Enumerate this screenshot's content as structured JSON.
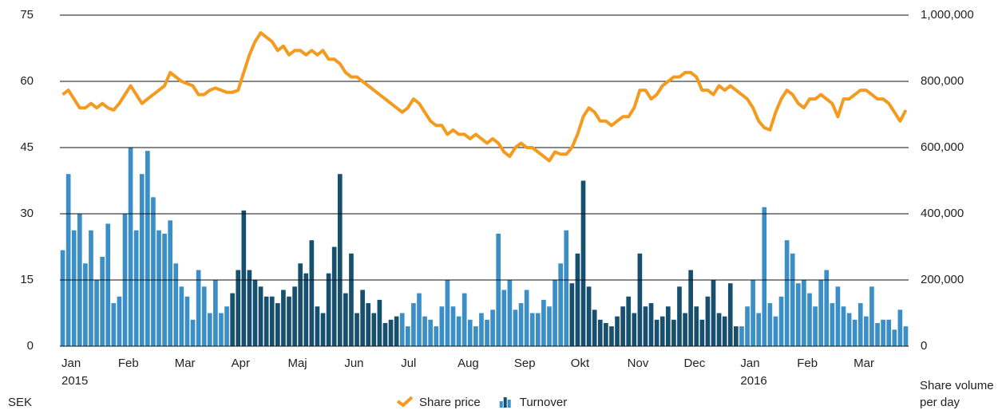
{
  "chart_data": {
    "type": "combo",
    "x": [
      0.05,
      0.15,
      0.25,
      0.35,
      0.45,
      0.55,
      0.65,
      0.75,
      0.85,
      0.95,
      1.05,
      1.15,
      1.25,
      1.35,
      1.45,
      1.55,
      1.65,
      1.75,
      1.85,
      1.95,
      2.05,
      2.15,
      2.25,
      2.35,
      2.45,
      2.55,
      2.65,
      2.75,
      2.85,
      2.95,
      3.05,
      3.15,
      3.25,
      3.35,
      3.45,
      3.55,
      3.65,
      3.75,
      3.85,
      3.95,
      4.05,
      4.15,
      4.25,
      4.35,
      4.45,
      4.55,
      4.65,
      4.75,
      4.85,
      4.95,
      5.05,
      5.15,
      5.25,
      5.35,
      5.45,
      5.55,
      5.65,
      5.75,
      5.85,
      5.95,
      6.05,
      6.15,
      6.25,
      6.35,
      6.45,
      6.55,
      6.65,
      6.75,
      6.85,
      6.95,
      7.05,
      7.15,
      7.25,
      7.35,
      7.45,
      7.55,
      7.65,
      7.75,
      7.85,
      7.95,
      8.05,
      8.15,
      8.25,
      8.35,
      8.45,
      8.55,
      8.65,
      8.75,
      8.85,
      8.95,
      9.05,
      9.15,
      9.25,
      9.35,
      9.45,
      9.55,
      9.65,
      9.75,
      9.85,
      9.95,
      10.05,
      10.15,
      10.25,
      10.35,
      10.45,
      10.55,
      10.65,
      10.75,
      10.85,
      10.95,
      11.05,
      11.15,
      11.25,
      11.35,
      11.45,
      11.55,
      11.65,
      11.75,
      11.85,
      11.95,
      12.05,
      12.15,
      12.25,
      12.35,
      12.45,
      12.55,
      12.65,
      12.75,
      12.85,
      12.95,
      13.05,
      13.15,
      13.25,
      13.35,
      13.45,
      13.55,
      13.65,
      13.75,
      13.85,
      13.95,
      14.05,
      14.15,
      14.25,
      14.35,
      14.45,
      14.55,
      14.65,
      14.75,
      14.85,
      14.95
    ],
    "xlim": [
      0,
      15
    ],
    "xticks": [
      {
        "value": 0,
        "label": "Jan"
      },
      {
        "value": 1,
        "label": "Feb"
      },
      {
        "value": 2,
        "label": "Mar"
      },
      {
        "value": 3,
        "label": "Apr"
      },
      {
        "value": 4,
        "label": "Maj"
      },
      {
        "value": 5,
        "label": "Jun"
      },
      {
        "value": 6,
        "label": "Jul"
      },
      {
        "value": 7,
        "label": "Aug"
      },
      {
        "value": 8,
        "label": "Sep"
      },
      {
        "value": 9,
        "label": "Okt"
      },
      {
        "value": 10,
        "label": "Nov"
      },
      {
        "value": 11,
        "label": "Dec"
      },
      {
        "value": 12,
        "label": "Jan"
      },
      {
        "value": 13,
        "label": "Feb"
      },
      {
        "value": 14,
        "label": "Mar"
      }
    ],
    "year_labels": [
      {
        "value": 0,
        "label": "2015"
      },
      {
        "value": 12,
        "label": "2016"
      }
    ],
    "ylim": [
      0,
      75
    ],
    "yticks": [
      0,
      15,
      30,
      45,
      60,
      75
    ],
    "y2lim": [
      0,
      1000000
    ],
    "y2ticks": [
      0,
      {
        "value": 200000,
        "label": "200,000"
      },
      {
        "value": 400000,
        "label": "400,000"
      },
      {
        "value": 600000,
        "label": "600,000"
      },
      {
        "value": 800000,
        "label": "800,000"
      },
      {
        "value": 1000000,
        "label": "1,000,000"
      }
    ],
    "y_label": "SEK",
    "y2_label_lines": [
      "Share volume",
      "per day"
    ],
    "grid": true,
    "series": [
      {
        "name": "Share price",
        "type": "line",
        "color": "#f39a1f",
        "values": [
          57,
          58,
          56,
          54,
          54,
          55,
          54,
          55,
          54,
          53.5,
          55,
          57,
          59,
          57,
          55,
          56,
          57,
          58,
          59,
          62,
          61,
          60,
          59.5,
          59,
          57,
          57,
          58,
          58.5,
          58,
          57.5,
          57.5,
          58,
          62,
          66,
          69,
          71,
          70,
          69,
          67,
          68,
          66,
          67,
          67,
          66,
          67,
          66,
          67,
          65,
          65,
          64,
          62,
          61,
          61,
          60,
          59,
          58,
          57,
          56,
          55,
          54,
          53,
          54,
          56,
          55,
          53,
          51,
          50,
          50,
          48,
          49,
          48,
          48,
          47,
          48,
          47,
          46,
          47,
          46,
          44,
          43,
          45,
          46,
          45,
          45,
          44,
          43,
          42,
          44,
          43.5,
          43.5,
          45,
          48,
          52,
          54,
          53,
          51,
          51,
          50,
          51,
          52,
          52,
          54,
          58,
          58,
          56,
          57,
          59,
          60,
          61,
          61,
          62,
          62,
          61,
          58,
          58,
          57,
          59,
          58,
          59,
          58,
          57,
          56,
          54,
          51,
          49.5,
          49,
          53,
          56,
          58,
          57,
          55,
          54,
          56,
          56,
          57,
          56,
          55,
          52,
          56,
          56,
          57,
          58,
          58,
          57,
          56,
          56,
          55,
          53,
          51,
          53.5
        ]
      },
      {
        "name": "Turnover",
        "type": "bar",
        "axis": "y2",
        "colors": [
          "#3b8fc6",
          "#17506f"
        ],
        "values": [
          290000,
          520000,
          350000,
          400000,
          250000,
          350000,
          200000,
          270000,
          370000,
          130000,
          150000,
          400000,
          600000,
          350000,
          520000,
          590000,
          450000,
          350000,
          340000,
          380000,
          250000,
          180000,
          150000,
          80000,
          230000,
          180000,
          100000,
          200000,
          100000,
          120000,
          160000,
          230000,
          410000,
          230000,
          200000,
          180000,
          150000,
          150000,
          130000,
          170000,
          150000,
          180000,
          250000,
          220000,
          320000,
          120000,
          100000,
          220000,
          300000,
          520000,
          160000,
          280000,
          100000,
          170000,
          130000,
          100000,
          140000,
          70000,
          80000,
          90000,
          100000,
          60000,
          130000,
          160000,
          90000,
          80000,
          60000,
          120000,
          200000,
          120000,
          90000,
          160000,
          80000,
          60000,
          100000,
          80000,
          110000,
          340000,
          170000,
          200000,
          110000,
          130000,
          170000,
          100000,
          100000,
          140000,
          120000,
          200000,
          250000,
          350000,
          190000,
          280000,
          500000,
          180000,
          110000,
          80000,
          70000,
          60000,
          90000,
          120000,
          150000,
          100000,
          280000,
          120000,
          130000,
          80000,
          90000,
          120000,
          80000,
          180000,
          100000,
          230000,
          120000,
          80000,
          150000,
          200000,
          100000,
          90000,
          190000,
          60000,
          60000,
          120000,
          200000,
          100000,
          420000,
          130000,
          90000,
          150000,
          320000,
          280000,
          190000,
          200000,
          160000,
          120000,
          200000,
          230000,
          130000,
          180000,
          120000,
          100000,
          80000,
          130000,
          90000,
          180000,
          70000,
          80000,
          80000,
          50000,
          110000,
          60000
        ]
      }
    ]
  }
}
